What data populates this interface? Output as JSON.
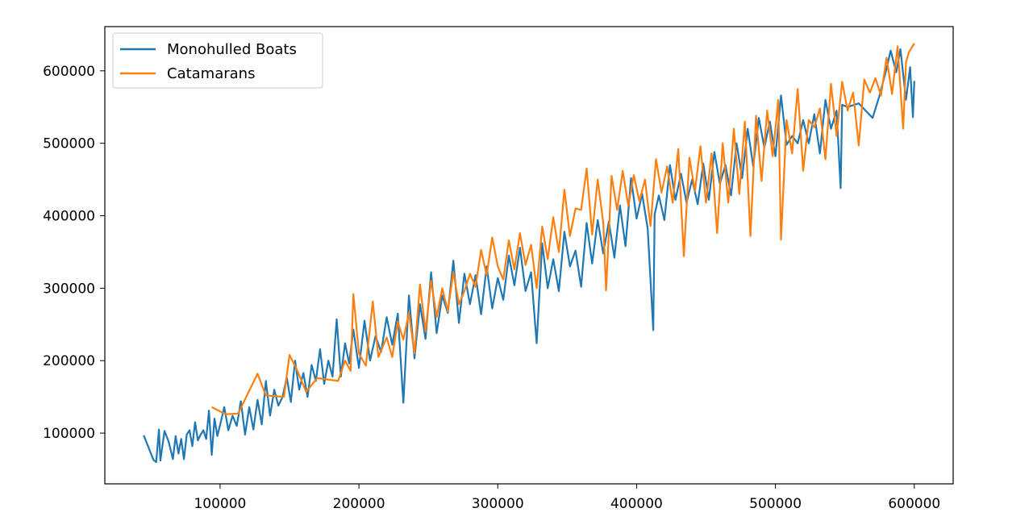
{
  "chart_data": {
    "type": "line",
    "title": "",
    "xlabel": "",
    "ylabel": "",
    "xlim": [
      17000,
      628000
    ],
    "ylim": [
      30000,
      661000
    ],
    "xticks": [
      100000,
      200000,
      300000,
      400000,
      500000,
      600000
    ],
    "yticks": [
      100000,
      200000,
      300000,
      400000,
      500000,
      600000
    ],
    "xtick_labels": [
      "100000",
      "200000",
      "300000",
      "400000",
      "500000",
      "600000"
    ],
    "ytick_labels": [
      "100000",
      "200000",
      "300000",
      "400000",
      "500000",
      "600000"
    ],
    "grid": false,
    "legend": {
      "position": "upper-left",
      "entries": [
        "Monohulled Boats",
        "Catamarans"
      ]
    },
    "series": [
      {
        "name": "Monohulled Boats",
        "color": "#1f77b4",
        "x": [
          45000,
          52000,
          54000,
          56000,
          57000,
          60000,
          63000,
          66000,
          68000,
          70000,
          72000,
          74000,
          76000,
          78000,
          80000,
          82000,
          84000,
          86000,
          88000,
          90000,
          92000,
          94000,
          96000,
          98000,
          100000,
          103000,
          106000,
          109000,
          112000,
          115000,
          118000,
          121000,
          124000,
          127000,
          130000,
          133000,
          136000,
          139000,
          142000,
          145000,
          148000,
          151000,
          154000,
          157000,
          160000,
          163000,
          166000,
          169000,
          172000,
          175000,
          178000,
          181000,
          184000,
          187000,
          190000,
          193000,
          196000,
          200000,
          204000,
          208000,
          212000,
          216000,
          220000,
          224000,
          228000,
          232000,
          236000,
          240000,
          244000,
          248000,
          252000,
          256000,
          260000,
          264000,
          268000,
          272000,
          276000,
          280000,
          284000,
          288000,
          292000,
          296000,
          300000,
          304000,
          308000,
          312000,
          316000,
          320000,
          324000,
          328000,
          332000,
          336000,
          340000,
          344000,
          348000,
          352000,
          356000,
          360000,
          364000,
          368000,
          372000,
          376000,
          380000,
          384000,
          388000,
          392000,
          396000,
          400000,
          404000,
          408000,
          412000,
          413000,
          416000,
          420000,
          424000,
          428000,
          432000,
          436000,
          440000,
          444000,
          448000,
          452000,
          456000,
          460000,
          464000,
          468000,
          472000,
          476000,
          480000,
          484000,
          488000,
          492000,
          496000,
          500000,
          504000,
          508000,
          512000,
          516000,
          520000,
          524000,
          528000,
          532000,
          536000,
          540000,
          544000,
          547000,
          548000,
          552000,
          560000,
          570000,
          575000,
          580000,
          583000,
          587000,
          590000,
          594000,
          597000,
          599000,
          600000
        ],
        "y": [
          97000,
          63000,
          60000,
          105000,
          62000,
          103000,
          88000,
          64000,
          96000,
          72000,
          92000,
          64000,
          98000,
          104000,
          82000,
          115000,
          90000,
          98000,
          104000,
          92000,
          131000,
          70000,
          120000,
          96000,
          111000,
          136000,
          104000,
          124000,
          110000,
          144000,
          98000,
          136000,
          105000,
          146000,
          112000,
          172000,
          124000,
          160000,
          138000,
          150000,
          177000,
          143000,
          200000,
          160000,
          183000,
          150000,
          194000,
          172000,
          216000,
          168000,
          200000,
          178000,
          257000,
          178000,
          224000,
          196000,
          243000,
          190000,
          255000,
          200000,
          234000,
          212000,
          260000,
          222000,
          265000,
          142000,
          290000,
          203000,
          278000,
          230000,
          322000,
          238000,
          290000,
          266000,
          338000,
          252000,
          320000,
          278000,
          318000,
          264000,
          330000,
          272000,
          314000,
          284000,
          345000,
          304000,
          356000,
          296000,
          322000,
          224000,
          362000,
          300000,
          340000,
          296000,
          378000,
          330000,
          352000,
          302000,
          390000,
          334000,
          394000,
          348000,
          392000,
          342000,
          414000,
          358000,
          452000,
          396000,
          430000,
          382000,
          242000,
          402000,
          428000,
          394000,
          470000,
          422000,
          458000,
          418000,
          450000,
          416000,
          472000,
          422000,
          488000,
          444000,
          470000,
          428000,
          500000,
          452000,
          520000,
          468000,
          535000,
          494000,
          530000,
          482000,
          566000,
          498000,
          510000,
          500000,
          532000,
          500000,
          540000,
          486000,
          560000,
          520000,
          545000,
          438000,
          553000,
          550000,
          555000,
          535000,
          566000,
          603000,
          628000,
          598000,
          630000,
          560000,
          605000,
          536000,
          586000
        ]
      },
      {
        "name": "Catamarans",
        "color": "#ff7f0e",
        "x": [
          94000,
          104000,
          113000,
          127000,
          133000,
          146000,
          150000,
          155000,
          162000,
          170000,
          185000,
          190000,
          194000,
          196000,
          200000,
          205000,
          210000,
          214000,
          220000,
          224000,
          228000,
          232000,
          236000,
          240000,
          244000,
          248000,
          252000,
          256000,
          260000,
          264000,
          268000,
          272000,
          276000,
          280000,
          284000,
          288000,
          292000,
          296000,
          300000,
          304000,
          308000,
          312000,
          316000,
          320000,
          324000,
          328000,
          332000,
          336000,
          340000,
          344000,
          348000,
          352000,
          356000,
          360000,
          364000,
          368000,
          372000,
          376000,
          378000,
          382000,
          386000,
          390000,
          394000,
          398000,
          402000,
          406000,
          410000,
          414000,
          418000,
          422000,
          426000,
          430000,
          434000,
          438000,
          442000,
          446000,
          450000,
          454000,
          458000,
          462000,
          466000,
          470000,
          474000,
          478000,
          482000,
          486000,
          490000,
          494000,
          498000,
          502000,
          504000,
          508000,
          512000,
          516000,
          520000,
          524000,
          528000,
          532000,
          536000,
          540000,
          544000,
          548000,
          552000,
          556000,
          560000,
          564000,
          568000,
          572000,
          576000,
          580000,
          584000,
          588000,
          592000,
          594000,
          596000,
          600000
        ],
        "y": [
          136000,
          126000,
          127000,
          182000,
          152000,
          150000,
          208000,
          189000,
          157000,
          176000,
          172000,
          200000,
          186000,
          292000,
          210000,
          193000,
          282000,
          205000,
          232000,
          205000,
          254000,
          229000,
          266000,
          210000,
          305000,
          240000,
          310000,
          260000,
          300000,
          268000,
          322000,
          278000,
          296000,
          320000,
          302000,
          353000,
          318000,
          370000,
          330000,
          312000,
          366000,
          326000,
          376000,
          332000,
          360000,
          300000,
          385000,
          340000,
          398000,
          350000,
          436000,
          372000,
          410000,
          408000,
          465000,
          374000,
          450000,
          390000,
          297000,
          455000,
          408000,
          462000,
          414000,
          456000,
          420000,
          450000,
          386000,
          478000,
          432000,
          468000,
          418000,
          492000,
          344000,
          480000,
          434000,
          496000,
          418000,
          486000,
          376000,
          500000,
          418000,
          520000,
          430000,
          530000,
          372000,
          538000,
          448000,
          545000,
          482000,
          560000,
          367000,
          532000,
          486000,
          575000,
          462000,
          532000,
          522000,
          548000,
          478000,
          582000,
          510000,
          585000,
          545000,
          570000,
          497000,
          588000,
          570000,
          590000,
          566000,
          618000,
          568000,
          634000,
          520000,
          612000,
          625000,
          638000
        ]
      }
    ]
  }
}
